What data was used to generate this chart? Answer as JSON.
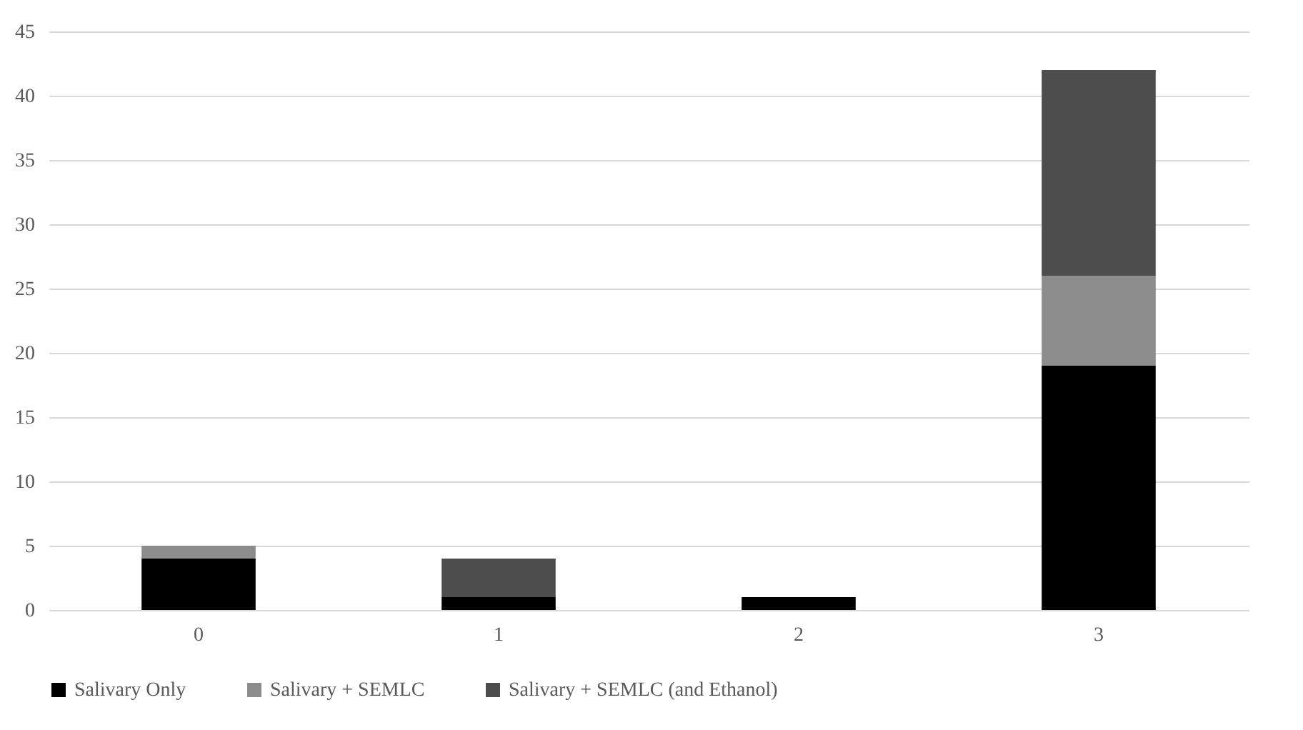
{
  "chart_data": {
    "type": "bar",
    "stacked": true,
    "categories": [
      "0",
      "1",
      "2",
      "3"
    ],
    "series": [
      {
        "name": "Salivary Only",
        "color": "#000000",
        "values": [
          4,
          1,
          1,
          19
        ]
      },
      {
        "name": "Salivary + SEMLC",
        "color": "#8c8c8c",
        "values": [
          1,
          0,
          0,
          7
        ]
      },
      {
        "name": "Salivary + SEMLC (and Ethanol)",
        "color": "#4d4d4d",
        "values": [
          0,
          3,
          0,
          16
        ]
      }
    ],
    "ylim": [
      0,
      45
    ],
    "yticks": [
      0,
      5,
      10,
      15,
      20,
      25,
      30,
      35,
      40,
      45
    ],
    "grid": "y",
    "legend": "bottom"
  }
}
